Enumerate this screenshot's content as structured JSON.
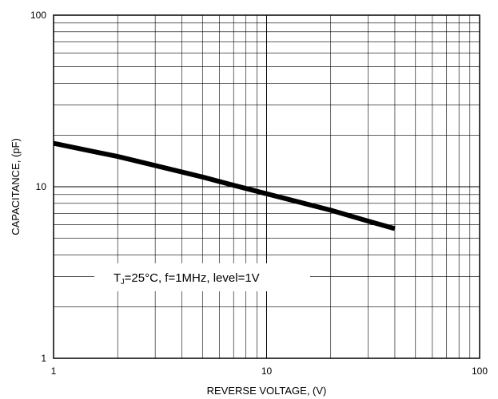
{
  "chart_data": {
    "type": "line",
    "xlabel": "REVERSE VOLTAGE, (V)",
    "ylabel": "CAPACITANCE, (pF)",
    "x_scale": "log",
    "y_scale": "log",
    "xlim": [
      1,
      100
    ],
    "ylim": [
      1,
      100
    ],
    "x_ticks": [
      1,
      10,
      100
    ],
    "y_ticks": [
      1,
      10,
      100
    ],
    "x_tick_labels": [
      "1",
      "10",
      "100"
    ],
    "y_tick_labels": [
      "1",
      "10",
      "100"
    ],
    "grid": true,
    "series": [
      {
        "x": [
          1,
          2,
          3,
          5,
          7,
          10,
          20,
          30,
          40
        ],
        "y": [
          17.9,
          15.0,
          13.3,
          11.4,
          10.2,
          9.1,
          7.3,
          6.3,
          5.7
        ]
      }
    ],
    "annotation": {
      "prefix": "T",
      "sub": "J",
      "rest": "=25°C, f=1MHz, level=1V"
    }
  }
}
